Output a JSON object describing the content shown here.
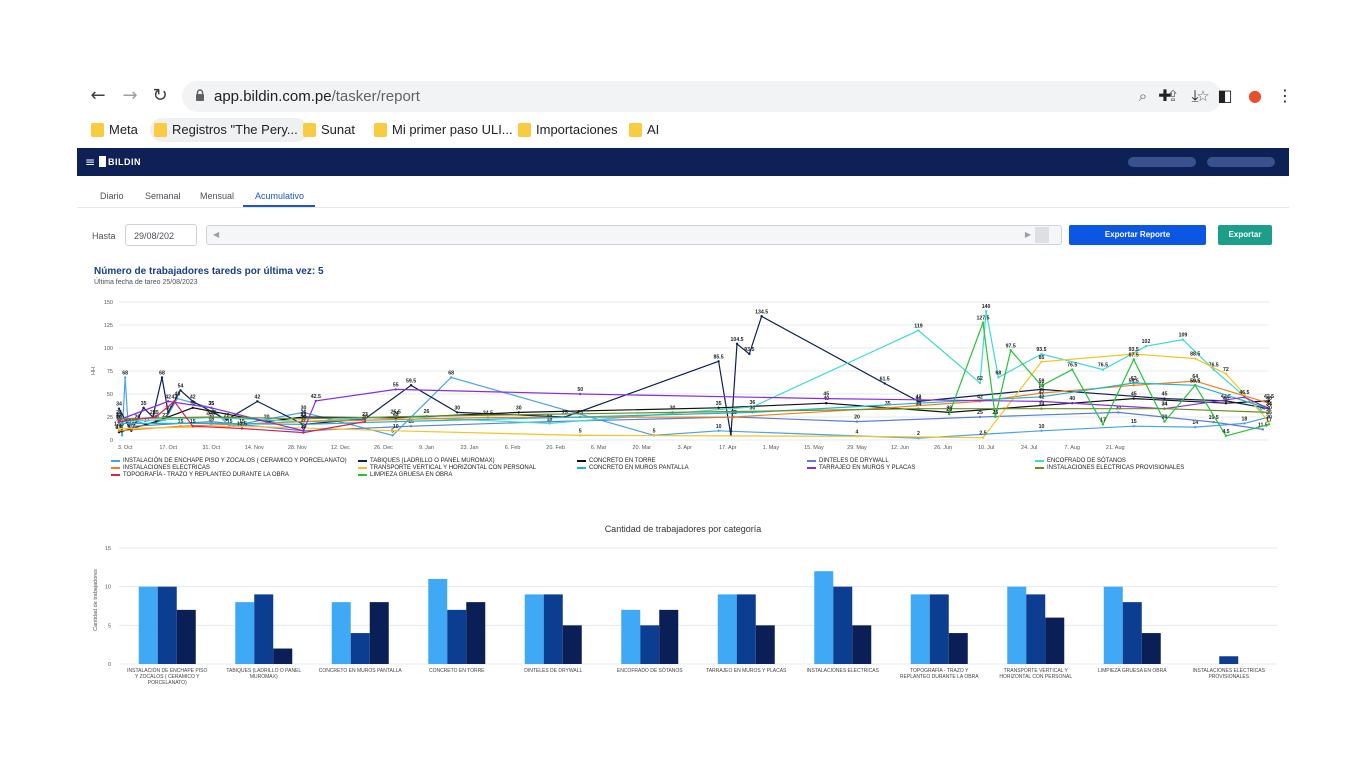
{
  "browser": {
    "url_host": "app.bildin.com.pe",
    "url_path": "/tasker/report",
    "bookmarks": [
      {
        "label": "Meta"
      },
      {
        "label": "Registros \"The Pery..."
      },
      {
        "label": "Sunat"
      },
      {
        "label": "Mi primer paso ULI..."
      },
      {
        "label": "Importaciones"
      },
      {
        "label": "AI"
      }
    ]
  },
  "app": {
    "brand": "BILDIN",
    "tabs": [
      {
        "label": "Diario"
      },
      {
        "label": "Semanal"
      },
      {
        "label": "Mensual"
      },
      {
        "label": "Acumulativo"
      }
    ],
    "active_tab": "Acumulativo",
    "filters": {
      "hasta_label": "Hasta",
      "date_value": "29/08/202",
      "export_report_label": "Exportar Reporte",
      "export_label": "Exportar"
    },
    "colors": {
      "appbar": "#0d2157",
      "primary": "#0b57e3",
      "teal": "#1b9f8b"
    }
  },
  "chart_data": [
    {
      "type": "line",
      "title": "Número de trabajadores tareds por última vez: 5",
      "subtitle": "Última fecha de tareo 25/08/2023",
      "ylabel": "HH",
      "ylim": [
        0,
        150
      ],
      "yticks": [
        0,
        25,
        50,
        75,
        100,
        125,
        150
      ],
      "xticks": [
        "3. Oct",
        "17. Oct",
        "31. Oct",
        "14. Nov",
        "28. Nov",
        "12. Dec",
        "26. Dec",
        "9. Jan",
        "23. Jan",
        "6. Feb",
        "20. Feb",
        "6. Mar",
        "20. Mar",
        "3. Apr",
        "17. Apr",
        "1. May",
        "15. May",
        "29. May",
        "12. Jun",
        "26. Jun",
        "10. Jul",
        "24. Jul",
        "7. Aug",
        "21. Aug"
      ],
      "series": [
        {
          "name": "INSTALACIÓN DE ENCHAPE PISO Y ZOCALOS ( CERAMICO Y PORCELANATO)",
          "color": "#4aa3e8",
          "points": [
            [
              0,
              25
            ],
            [
              1,
              5
            ],
            [
              2,
              68
            ],
            [
              3,
              15
            ],
            [
              6,
              20
            ],
            [
              9,
              17
            ],
            [
              15,
              22
            ],
            [
              19,
              45
            ],
            [
              30,
              35
            ],
            [
              36,
              15
            ],
            [
              60,
              30
            ],
            [
              89,
              5
            ],
            [
              108,
              68
            ],
            [
              174,
              5
            ],
            [
              195,
              10
            ],
            [
              260,
              2
            ],
            [
              300,
              10
            ],
            [
              330,
              15
            ],
            [
              350,
              14
            ],
            [
              366,
              18
            ],
            [
              374,
              25
            ]
          ]
        },
        {
          "name": "TABIQUES (LADRILLO O PANEL MUROMAX)",
          "color": "#0d2157",
          "points": [
            [
              0,
              34
            ],
            [
              4,
              10
            ],
            [
              8,
              35
            ],
            [
              11,
              25
            ],
            [
              14,
              68
            ],
            [
              16,
              30
            ],
            [
              20,
              54
            ],
            [
              24,
              42
            ],
            [
              35,
              22
            ],
            [
              45,
              42
            ],
            [
              60,
              17
            ],
            [
              80,
              23
            ],
            [
              95,
              59.5
            ],
            [
              110,
              30
            ],
            [
              145,
              25
            ],
            [
              195,
              85.5
            ],
            [
              199,
              5
            ],
            [
              201,
              104.5
            ],
            [
              205,
              93.5
            ],
            [
              209,
              134.5
            ],
            [
              249,
              61.5
            ],
            [
              260,
              42
            ],
            [
              300,
              55
            ],
            [
              340,
              45
            ],
            [
              360,
              42.5
            ],
            [
              374,
              34
            ]
          ]
        },
        {
          "name": "CONCRETO EN TORRE",
          "color": "#111111",
          "points": [
            [
              0,
              8.5
            ],
            [
              12,
              20
            ],
            [
              24,
              35
            ],
            [
              48,
              20
            ],
            [
              60,
              25
            ],
            [
              90,
              24
            ],
            [
              130,
              30
            ],
            [
              195,
              35
            ],
            [
              230,
              40
            ],
            [
              270,
              30
            ],
            [
              310,
              40
            ],
            [
              330,
              45
            ],
            [
              360,
              40
            ],
            [
              374,
              42.5
            ]
          ]
        },
        {
          "name": "DINTELES DE DRYWALL",
          "color": "#5b7fd6",
          "points": [
            [
              5,
              15
            ],
            [
              30,
              20
            ],
            [
              60,
              10
            ],
            [
              95,
              15
            ],
            [
              140,
              20
            ],
            [
              200,
              25
            ],
            [
              240,
              20
            ],
            [
              280,
              25
            ],
            [
              325,
              30
            ],
            [
              356,
              19.5
            ],
            [
              372,
              11.5
            ]
          ]
        },
        {
          "name": "ENCOFRADO DE SÓTANOS",
          "color": "#3ddbd0",
          "points": [
            [
              0,
              20
            ],
            [
              30,
              24.5
            ],
            [
              60,
              20
            ],
            [
              90,
              25.5
            ],
            [
              140,
              18
            ],
            [
              206,
              36
            ],
            [
              260,
              119
            ],
            [
              280,
              62
            ],
            [
              282,
              140
            ],
            [
              286,
              68
            ],
            [
              300,
              93.5
            ],
            [
              320,
              76.5
            ],
            [
              334,
              102
            ],
            [
              346,
              109
            ],
            [
              356,
              76.5
            ],
            [
              372,
              30
            ]
          ]
        },
        {
          "name": "INSTALACIONES ELECTRICAS",
          "color": "#f07f1e",
          "points": [
            [
              0,
              10
            ],
            [
              20,
              15
            ],
            [
              60,
              20
            ],
            [
              120,
              24.5
            ],
            [
              200,
              25
            ],
            [
              250,
              35
            ],
            [
              280,
              42
            ],
            [
              300,
              51
            ],
            [
              330,
              59.5
            ],
            [
              350,
              64
            ],
            [
              374,
              40
            ]
          ]
        },
        {
          "name": "TRANSPORTE VERTICAL Y HORIZONTAL CON PERSONAL",
          "color": "#f5c422",
          "points": [
            [
              0,
              12.5
            ],
            [
              40,
              15
            ],
            [
              90,
              10
            ],
            [
              150,
              5
            ],
            [
              240,
              4
            ],
            [
              281,
              2.5
            ],
            [
              300,
              85
            ],
            [
              330,
              93.5
            ],
            [
              350,
              88.5
            ],
            [
              360,
              72
            ],
            [
              374,
              20
            ]
          ]
        },
        {
          "name": "CONCRETO EN MUROS PANTALLA",
          "color": "#1fb5c9",
          "points": [
            [
              0,
              18
            ],
            [
              30,
              18
            ],
            [
              60,
              17
            ],
            [
              90,
              20
            ],
            [
              150,
              25
            ],
            [
              206,
              30
            ],
            [
              260,
              40
            ],
            [
              300,
              47
            ],
            [
              330,
              62
            ],
            [
              350,
              59.5
            ],
            [
              374,
              34
            ]
          ]
        },
        {
          "name": "TARRAJEO EN MUROS Y PLACAS",
          "color": "#8a2be2",
          "points": [
            [
              0,
              22
            ],
            [
              16,
              42
            ],
            [
              30,
              35
            ],
            [
              60,
              10
            ],
            [
              64,
              42.5
            ],
            [
              90,
              55
            ],
            [
              150,
              50
            ],
            [
              230,
              45
            ],
            [
              300,
              42
            ],
            [
              340,
              34
            ],
            [
              366,
              46.5
            ],
            [
              374,
              34
            ]
          ]
        },
        {
          "name": "INSTALACIONES ELECTRICAS PROVISIONALES",
          "color": "#6b8e23",
          "points": [
            [
              0,
              23
            ],
            [
              30,
              25
            ],
            [
              60,
              23
            ],
            [
              100,
              26
            ],
            [
              180,
              30
            ],
            [
              260,
              34
            ],
            [
              300,
              34
            ],
            [
              340,
              34
            ],
            [
              374,
              30
            ]
          ]
        },
        {
          "name": "TOPOGRAFÍA - TRAZO Y REPLANTEO DURANTE LA OBRA",
          "color": "#d61f5e",
          "points": [
            [
              0,
              20
            ],
            [
              12,
              25
            ],
            [
              18,
              42
            ],
            [
              24,
              15
            ],
            [
              40,
              12.5
            ],
            [
              60,
              8
            ],
            [
              80,
              20
            ]
          ]
        },
        {
          "name": "LIMPIEZA GRUESA EN OBRA",
          "color": "#28c23c",
          "points": [
            [
              270,
              28
            ],
            [
              281,
              127.5
            ],
            [
              285,
              25
            ],
            [
              290,
              97.5
            ],
            [
              300,
              59
            ],
            [
              310,
              76.5
            ],
            [
              320,
              17
            ],
            [
              330,
              87.5
            ],
            [
              340,
              20
            ],
            [
              350,
              59.5
            ],
            [
              360,
              4.5
            ],
            [
              374,
              17
            ]
          ]
        }
      ]
    },
    {
      "type": "bar",
      "title": "Cantidad de trabajadores por categoría",
      "ylabel": "Cantidad de trabajadores",
      "ylim": [
        0,
        15
      ],
      "yticks": [
        0,
        5,
        10,
        15
      ],
      "categories": [
        "INSTALACIÓN DE ENCHAPE PISO Y ZOCALOS ( CERAMICO Y PORCELANATO)",
        "TABIQUES (LADRILLO O PANEL MUROMAX)",
        "CONCRETO EN MUROS PANTALLA",
        "CONCRETO EN TORRE",
        "DINTELES DE DRYWALL",
        "ENCOFRADO DE SÓTANOS",
        "TARRAJEO EN MUROS Y PLACAS",
        "INSTALACIONES ELECTRICAS",
        "TOPOGRAFÍA - TRAZO Y REPLANTEO DURANTE LA OBRA",
        "TRANSPORTE VERTICAL Y HORIZONTAL CON PERSONAL",
        "LIMPIEZA GRUESA EN OBRA",
        "INSTALACIONES ELECTRICAS PROVISIONALES"
      ],
      "series": [
        {
          "color": "#3fa9f5",
          "values": [
            10,
            8,
            8,
            11,
            9,
            7,
            9,
            12,
            9,
            10,
            10,
            0
          ]
        },
        {
          "color": "#0b3d91",
          "values": [
            10,
            9,
            4,
            7,
            9,
            5,
            9,
            10,
            9,
            9,
            8,
            1
          ]
        },
        {
          "color": "#0a1f55",
          "values": [
            7,
            2,
            8,
            8,
            5,
            7,
            5,
            5,
            4,
            6,
            4,
            0
          ]
        }
      ]
    }
  ]
}
